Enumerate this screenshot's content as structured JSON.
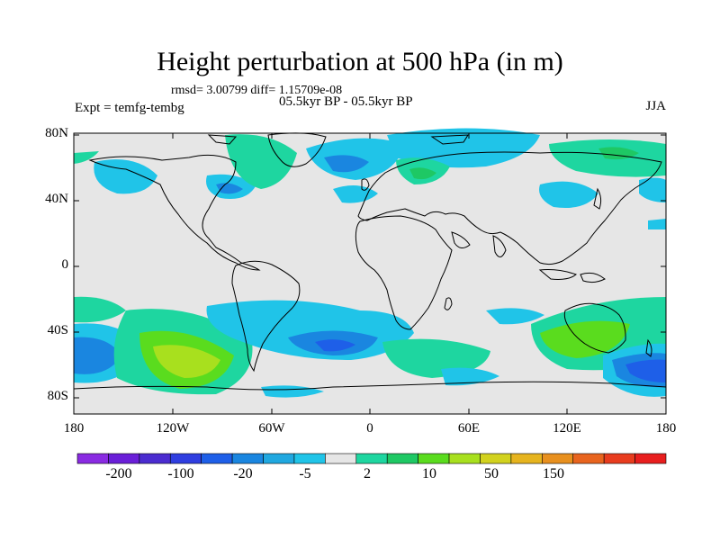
{
  "title": "Height perturbation at 500 hPa (in m)",
  "stats": "rmsd= 3.00799 diff= 1.15709e-08",
  "experiment": "Expt = temfg-tembg",
  "subtitle": "05.5kyr BP - 05.5kyr BP",
  "season": "JJA",
  "lat_labels": [
    "80N",
    "40N",
    "0",
    "40S",
    "80S"
  ],
  "lon_labels": [
    "180",
    "120W",
    "60W",
    "0",
    "60E",
    "120E",
    "180"
  ],
  "colorbar": {
    "labels": [
      "-200",
      "-100",
      "-20",
      "-5",
      "2",
      "10",
      "50",
      "150"
    ],
    "colors": [
      "#8a2be2",
      "#6a1fd8",
      "#4b2cd0",
      "#2f3ee0",
      "#1e5fe8",
      "#1a86e0",
      "#20a8e0",
      "#20c4e8",
      "#e6e6e6",
      "#1ed6a0",
      "#1ec864",
      "#5adc1e",
      "#a8e01e",
      "#d2d21e",
      "#e6b41e",
      "#e8901e",
      "#e8641e",
      "#e83c1e",
      "#e81e1e"
    ]
  },
  "map_colors": {
    "background": "#e6e6e6",
    "coast": "#000000"
  }
}
